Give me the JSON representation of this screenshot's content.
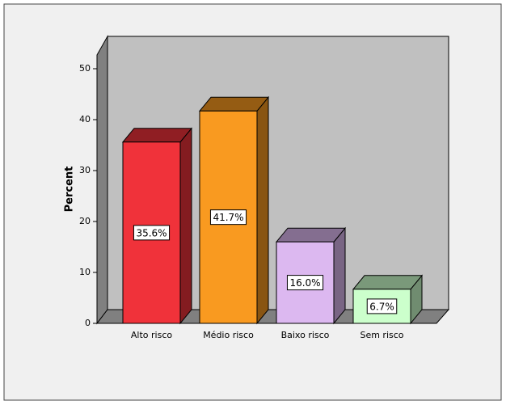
{
  "chart_data": {
    "type": "bar3d",
    "y_label": "Percent",
    "categories": [
      "Alto risco",
      "Médio risco",
      "Baixo risco",
      "Sem risco"
    ],
    "values": [
      35.6,
      41.7,
      16.0,
      6.7
    ],
    "value_labels": [
      "35.6%",
      "41.7%",
      "16.0%",
      "6.7%"
    ],
    "colors": [
      "#f0323a",
      "#f99a20",
      "#dcb8f0",
      "#ccffcc"
    ],
    "ylim": [
      0,
      50
    ],
    "yticks": [
      0,
      10,
      20,
      30,
      40,
      50
    ]
  }
}
